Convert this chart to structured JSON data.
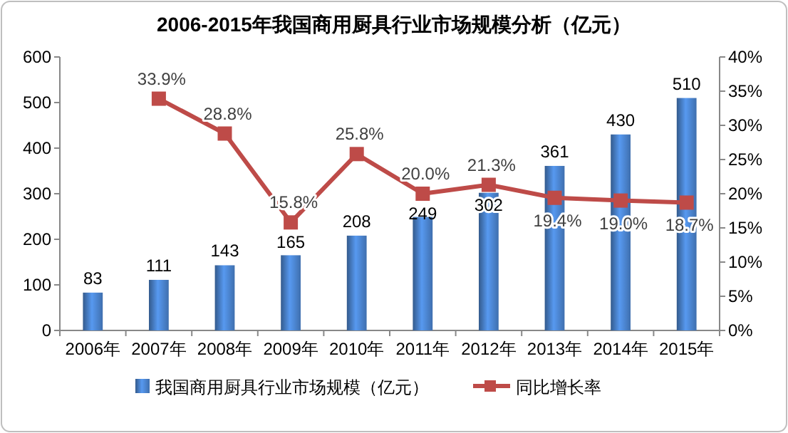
{
  "chart_data": {
    "type": "bar",
    "title": "2006-2015年我国商用厨具行业市场规模分析（亿元）",
    "categories": [
      "2006年",
      "2007年",
      "2008年",
      "2009年",
      "2010年",
      "2011年",
      "2012年",
      "2013年",
      "2014年",
      "2015年"
    ],
    "series": [
      {
        "name": "我国商用厨具行业市场规模（亿元）",
        "color": "#3f6fae",
        "values": [
          83,
          111,
          143,
          165,
          208,
          249,
          302,
          361,
          430,
          510
        ],
        "value_labels": [
          "83",
          "111",
          "143",
          "165",
          "208",
          "249",
          "302",
          "361",
          "430",
          "510"
        ]
      },
      {
        "name": "同比增长率",
        "type": "line",
        "axis": "y2",
        "color": "#be4b48",
        "marker": "square",
        "values": [
          null,
          33.9,
          28.8,
          15.8,
          25.8,
          20.0,
          21.3,
          19.4,
          19.0,
          18.7
        ],
        "value_labels": [
          null,
          "33.9%",
          "28.8%",
          "15.8%",
          "25.8%",
          "20.0%",
          "21.3%",
          "19.4%",
          "19.0%",
          "18.7%"
        ]
      }
    ],
    "ylim": [
      0,
      600
    ],
    "yticks": [
      0,
      100,
      200,
      300,
      400,
      500,
      600
    ],
    "y2lim": [
      0,
      40
    ],
    "y2ticks": [
      {
        "value": 0,
        "label": "0%"
      },
      {
        "value": 5,
        "label": "5%"
      },
      {
        "value": 10,
        "label": "10%"
      },
      {
        "value": 15,
        "label": "15%"
      },
      {
        "value": 20,
        "label": "20%"
      },
      {
        "value": 25,
        "label": "25%"
      },
      {
        "value": 30,
        "label": "30%"
      },
      {
        "value": 35,
        "label": "35%"
      },
      {
        "value": 40,
        "label": "40%"
      }
    ],
    "grid": false,
    "legend": "bottom"
  }
}
